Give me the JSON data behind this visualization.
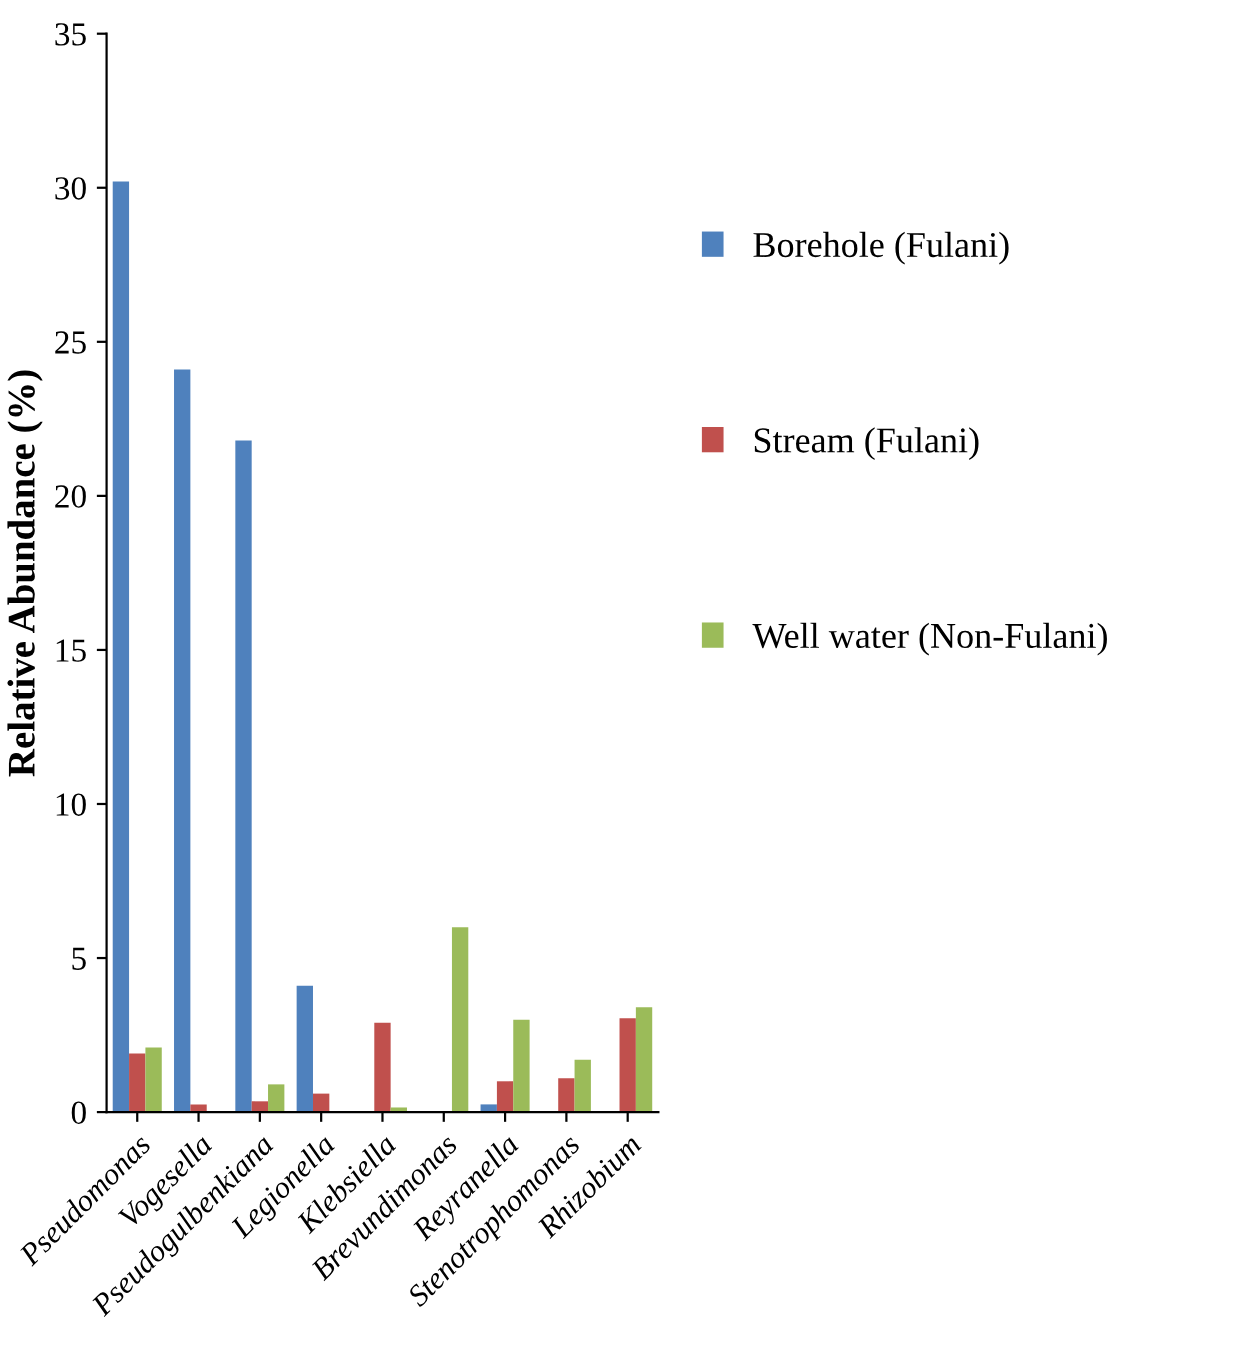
{
  "chart_data": {
    "type": "bar",
    "ylabel": "Relative Abundance (%)",
    "categories": [
      "Pseudomonas",
      "Vogesella",
      "Pseudogulbenkiana",
      "Legionella",
      "Klebsiella",
      "Brevundimonas",
      "Reyranella",
      "Stenotrophomonas",
      "Rhizobium"
    ],
    "series": [
      {
        "name": "Borehole (Fulani)",
        "color": "#4f81bd",
        "values": [
          30.2,
          24.1,
          21.8,
          4.1,
          null,
          0.0,
          0.25,
          0.0,
          null
        ]
      },
      {
        "name": "Stream (Fulani)",
        "color": "#c0504d",
        "values": [
          1.9,
          0.25,
          0.35,
          0.6,
          2.9,
          null,
          1.0,
          1.1,
          3.05
        ]
      },
      {
        "name": "Well water (Non-Fulani)",
        "color": "#9bbb59",
        "values": [
          2.1,
          null,
          0.9,
          null,
          0.15,
          6.0,
          3.0,
          1.7,
          3.4
        ]
      }
    ],
    "ylim": [
      0,
      35
    ],
    "yticks": [
      0,
      5,
      10,
      15,
      20,
      25,
      30,
      35
    ],
    "grid": false,
    "legend": "right"
  }
}
